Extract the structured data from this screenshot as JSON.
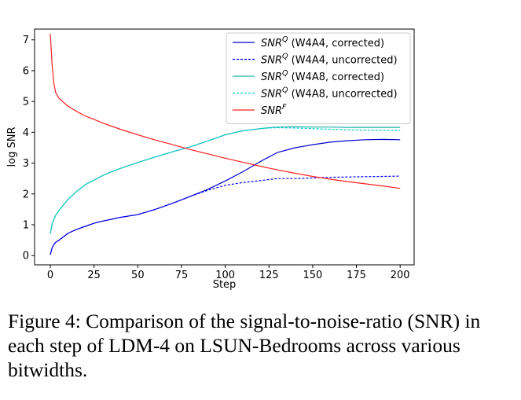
{
  "caption": "Figure 4:  Comparison of the signal-to-noise-ratio (SNR) in each step of LDM-4 on LSUN-Bedrooms across various bitwidths.",
  "chart_data": {
    "type": "line",
    "title": "",
    "xlabel": "Step",
    "ylabel": "log SNR",
    "xlim": [
      -9,
      208
    ],
    "ylim": [
      -0.3,
      7.35
    ],
    "xticks": [
      0,
      25,
      50,
      75,
      100,
      125,
      150,
      175,
      200
    ],
    "yticks": [
      0,
      1,
      2,
      3,
      4,
      5,
      6,
      7
    ],
    "grid": false,
    "legend_position": "top-right",
    "x": [
      0,
      1,
      2,
      3,
      5,
      10,
      15,
      20,
      25,
      30,
      35,
      40,
      50,
      60,
      70,
      80,
      90,
      100,
      110,
      120,
      125,
      130,
      140,
      150,
      160,
      170,
      180,
      190,
      200
    ],
    "series": [
      {
        "name_parts": [
          "SNR",
          "Q",
          " (W4A4, corrected)"
        ],
        "color": "#0000cc",
        "dash": "solid",
        "values": [
          0.03,
          0.25,
          0.35,
          0.43,
          0.5,
          0.72,
          0.85,
          0.95,
          1.05,
          1.12,
          1.18,
          1.24,
          1.33,
          1.5,
          1.7,
          1.92,
          2.15,
          2.42,
          2.72,
          3.05,
          3.2,
          3.35,
          3.5,
          3.6,
          3.68,
          3.73,
          3.76,
          3.77,
          3.76
        ]
      },
      {
        "name_parts": [
          "SNR",
          "Q",
          " (W4A4, uncorrected)"
        ],
        "color": "#0000ff",
        "dash": "dashed",
        "values": [
          0.03,
          0.25,
          0.35,
          0.43,
          0.5,
          0.72,
          0.85,
          0.95,
          1.05,
          1.12,
          1.18,
          1.24,
          1.33,
          1.5,
          1.7,
          1.92,
          2.12,
          2.28,
          2.37,
          2.43,
          2.47,
          2.5,
          2.5,
          2.52,
          2.54,
          2.55,
          2.56,
          2.57,
          2.58
        ]
      },
      {
        "name_parts": [
          "SNR",
          "Q",
          " (W4A8, corrected)"
        ],
        "color": "#20b2aa",
        "dash": "solid",
        "values": [
          0.72,
          1.02,
          1.18,
          1.3,
          1.47,
          1.82,
          2.08,
          2.3,
          2.45,
          2.6,
          2.72,
          2.83,
          3.02,
          3.2,
          3.37,
          3.53,
          3.72,
          3.92,
          4.05,
          4.12,
          4.15,
          4.17,
          4.18,
          4.17,
          4.17,
          4.16,
          4.16,
          4.16,
          4.16
        ]
      },
      {
        "name_parts": [
          "SNR",
          "Q",
          " (W4A8, uncorrected)"
        ],
        "color": "#00ced1",
        "dash": "dashed",
        "values": [
          0.72,
          1.02,
          1.18,
          1.3,
          1.47,
          1.82,
          2.08,
          2.3,
          2.45,
          2.6,
          2.72,
          2.83,
          3.02,
          3.2,
          3.37,
          3.53,
          3.72,
          3.92,
          4.05,
          4.12,
          4.14,
          4.15,
          4.14,
          4.12,
          4.1,
          4.08,
          4.07,
          4.07,
          4.06
        ]
      },
      {
        "name_parts": [
          "SNR",
          "F",
          ""
        ],
        "color": "#ff2020",
        "dash": "solid",
        "values": [
          7.2,
          6.2,
          5.6,
          5.3,
          5.1,
          4.85,
          4.68,
          4.53,
          4.42,
          4.3,
          4.2,
          4.1,
          3.92,
          3.75,
          3.6,
          3.44,
          3.3,
          3.16,
          3.03,
          2.9,
          2.84,
          2.78,
          2.67,
          2.57,
          2.48,
          2.4,
          2.33,
          2.26,
          2.18
        ]
      }
    ]
  }
}
